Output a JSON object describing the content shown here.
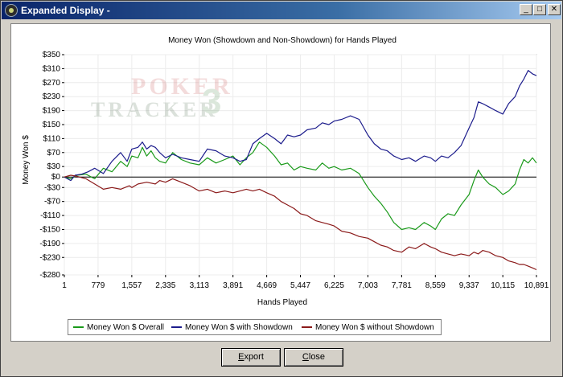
{
  "window": {
    "title": "Expanded Display -",
    "min_glyph": "_",
    "max_glyph": "□",
    "close_glyph": "✕"
  },
  "buttons": {
    "export_first": "E",
    "export_rest": "xport",
    "close_first": "C",
    "close_rest": "lose"
  },
  "watermark": {
    "line1": "POKER",
    "line2": "TRACKER",
    "badge": "3"
  },
  "chart_data": {
    "type": "line",
    "title": "Money Won (Showdown and Non-Showdown) for Hands Played",
    "xlabel": "Hands Played",
    "ylabel": "Money Won $",
    "xlim": [
      1,
      10891
    ],
    "ylim": [
      -280,
      350
    ],
    "x_ticks": [
      1,
      779,
      1557,
      2335,
      3113,
      3891,
      4669,
      5447,
      6225,
      7003,
      7781,
      8559,
      9337,
      10115,
      10891
    ],
    "x_tick_labels": [
      "1",
      "779",
      "1,557",
      "2,335",
      "3,113",
      "3,891",
      "4,669",
      "5,447",
      "6,225",
      "7,003",
      "7,781",
      "8,559",
      "9,337",
      "10,115",
      "10,891"
    ],
    "y_ticks": [
      350,
      310,
      270,
      230,
      190,
      150,
      110,
      70,
      30,
      0,
      -30,
      -70,
      -110,
      -150,
      -190,
      -230,
      -280
    ],
    "y_tick_labels": [
      "$350",
      "$310",
      "$270",
      "$230",
      "$190",
      "$150",
      "$110",
      "$70",
      "$30",
      "$0",
      "-$30",
      "-$70",
      "-$110",
      "-$150",
      "-$190",
      "-$230",
      "-$280"
    ],
    "grid": true,
    "legend_position": "bottom-left",
    "series": [
      {
        "name": "Money Won $ Overall",
        "color": "#1a9a1a",
        "points": [
          [
            1,
            0
          ],
          [
            150,
            -5
          ],
          [
            300,
            5
          ],
          [
            500,
            8
          ],
          [
            700,
            -5
          ],
          [
            900,
            25
          ],
          [
            1100,
            15
          ],
          [
            1300,
            45
          ],
          [
            1450,
            30
          ],
          [
            1557,
            60
          ],
          [
            1700,
            55
          ],
          [
            1800,
            85
          ],
          [
            1900,
            60
          ],
          [
            2000,
            75
          ],
          [
            2100,
            55
          ],
          [
            2200,
            45
          ],
          [
            2335,
            40
          ],
          [
            2500,
            70
          ],
          [
            2700,
            50
          ],
          [
            2900,
            40
          ],
          [
            3113,
            35
          ],
          [
            3300,
            55
          ],
          [
            3500,
            40
          ],
          [
            3700,
            50
          ],
          [
            3891,
            60
          ],
          [
            4050,
            35
          ],
          [
            4200,
            55
          ],
          [
            4350,
            70
          ],
          [
            4500,
            100
          ],
          [
            4669,
            85
          ],
          [
            4850,
            60
          ],
          [
            5000,
            35
          ],
          [
            5150,
            40
          ],
          [
            5300,
            20
          ],
          [
            5447,
            30
          ],
          [
            5600,
            25
          ],
          [
            5800,
            20
          ],
          [
            5950,
            40
          ],
          [
            6100,
            25
          ],
          [
            6225,
            30
          ],
          [
            6400,
            20
          ],
          [
            6600,
            25
          ],
          [
            6800,
            10
          ],
          [
            7003,
            -30
          ],
          [
            7150,
            -55
          ],
          [
            7300,
            -75
          ],
          [
            7450,
            -100
          ],
          [
            7600,
            -130
          ],
          [
            7781,
            -150
          ],
          [
            7950,
            -145
          ],
          [
            8100,
            -150
          ],
          [
            8300,
            -130
          ],
          [
            8450,
            -140
          ],
          [
            8559,
            -150
          ],
          [
            8700,
            -120
          ],
          [
            8850,
            -105
          ],
          [
            9000,
            -110
          ],
          [
            9150,
            -80
          ],
          [
            9337,
            -50
          ],
          [
            9450,
            -10
          ],
          [
            9550,
            20
          ],
          [
            9650,
            0
          ],
          [
            9800,
            -20
          ],
          [
            9950,
            -30
          ],
          [
            10115,
            -50
          ],
          [
            10250,
            -40
          ],
          [
            10400,
            -20
          ],
          [
            10500,
            20
          ],
          [
            10600,
            50
          ],
          [
            10700,
            40
          ],
          [
            10800,
            55
          ],
          [
            10891,
            40
          ]
        ]
      },
      {
        "name": "Money Won $ with Showdown",
        "color": "#1c1c8c",
        "points": [
          [
            1,
            0
          ],
          [
            150,
            -10
          ],
          [
            250,
            5
          ],
          [
            400,
            8
          ],
          [
            550,
            15
          ],
          [
            700,
            25
          ],
          [
            900,
            10
          ],
          [
            1100,
            45
          ],
          [
            1300,
            70
          ],
          [
            1450,
            45
          ],
          [
            1557,
            80
          ],
          [
            1700,
            85
          ],
          [
            1800,
            100
          ],
          [
            1900,
            80
          ],
          [
            2000,
            90
          ],
          [
            2100,
            85
          ],
          [
            2200,
            70
          ],
          [
            2335,
            55
          ],
          [
            2500,
            65
          ],
          [
            2700,
            55
          ],
          [
            2900,
            50
          ],
          [
            3113,
            45
          ],
          [
            3300,
            80
          ],
          [
            3500,
            75
          ],
          [
            3700,
            60
          ],
          [
            3891,
            55
          ],
          [
            4050,
            45
          ],
          [
            4200,
            50
          ],
          [
            4350,
            95
          ],
          [
            4500,
            110
          ],
          [
            4669,
            125
          ],
          [
            4850,
            110
          ],
          [
            5000,
            95
          ],
          [
            5150,
            120
          ],
          [
            5300,
            115
          ],
          [
            5447,
            120
          ],
          [
            5600,
            135
          ],
          [
            5800,
            140
          ],
          [
            5950,
            155
          ],
          [
            6100,
            150
          ],
          [
            6225,
            160
          ],
          [
            6400,
            165
          ],
          [
            6600,
            175
          ],
          [
            6800,
            165
          ],
          [
            7003,
            120
          ],
          [
            7150,
            95
          ],
          [
            7300,
            80
          ],
          [
            7450,
            75
          ],
          [
            7600,
            60
          ],
          [
            7781,
            50
          ],
          [
            7950,
            55
          ],
          [
            8100,
            45
          ],
          [
            8300,
            60
          ],
          [
            8450,
            55
          ],
          [
            8559,
            45
          ],
          [
            8700,
            60
          ],
          [
            8850,
            55
          ],
          [
            9000,
            70
          ],
          [
            9150,
            90
          ],
          [
            9337,
            140
          ],
          [
            9450,
            170
          ],
          [
            9550,
            215
          ],
          [
            9650,
            210
          ],
          [
            9800,
            200
          ],
          [
            9950,
            190
          ],
          [
            10115,
            180
          ],
          [
            10250,
            210
          ],
          [
            10400,
            230
          ],
          [
            10500,
            260
          ],
          [
            10600,
            280
          ],
          [
            10700,
            305
          ],
          [
            10800,
            295
          ],
          [
            10891,
            290
          ]
        ]
      },
      {
        "name": "Money Won $ without Showdown",
        "color": "#8b1a1a",
        "points": [
          [
            1,
            0
          ],
          [
            150,
            5
          ],
          [
            300,
            2
          ],
          [
            500,
            -5
          ],
          [
            700,
            -20
          ],
          [
            900,
            -35
          ],
          [
            1100,
            -30
          ],
          [
            1300,
            -35
          ],
          [
            1500,
            -25
          ],
          [
            1557,
            -30
          ],
          [
            1700,
            -20
          ],
          [
            1900,
            -15
          ],
          [
            2100,
            -20
          ],
          [
            2200,
            -10
          ],
          [
            2335,
            -15
          ],
          [
            2500,
            -5
          ],
          [
            2700,
            -15
          ],
          [
            2900,
            -25
          ],
          [
            3113,
            -40
          ],
          [
            3300,
            -35
          ],
          [
            3500,
            -45
          ],
          [
            3700,
            -40
          ],
          [
            3891,
            -45
          ],
          [
            4050,
            -40
          ],
          [
            4200,
            -35
          ],
          [
            4350,
            -40
          ],
          [
            4500,
            -35
          ],
          [
            4669,
            -45
          ],
          [
            4850,
            -55
          ],
          [
            5000,
            -70
          ],
          [
            5150,
            -80
          ],
          [
            5300,
            -90
          ],
          [
            5447,
            -105
          ],
          [
            5600,
            -110
          ],
          [
            5800,
            -125
          ],
          [
            5950,
            -130
          ],
          [
            6100,
            -135
          ],
          [
            6225,
            -140
          ],
          [
            6400,
            -155
          ],
          [
            6600,
            -160
          ],
          [
            6800,
            -170
          ],
          [
            7003,
            -175
          ],
          [
            7150,
            -185
          ],
          [
            7300,
            -195
          ],
          [
            7450,
            -200
          ],
          [
            7600,
            -210
          ],
          [
            7781,
            -215
          ],
          [
            7950,
            -200
          ],
          [
            8100,
            -205
          ],
          [
            8300,
            -190
          ],
          [
            8450,
            -200
          ],
          [
            8559,
            -205
          ],
          [
            8700,
            -215
          ],
          [
            8850,
            -220
          ],
          [
            9000,
            -225
          ],
          [
            9150,
            -220
          ],
          [
            9337,
            -225
          ],
          [
            9450,
            -215
          ],
          [
            9550,
            -220
          ],
          [
            9650,
            -210
          ],
          [
            9800,
            -215
          ],
          [
            9950,
            -225
          ],
          [
            10115,
            -230
          ],
          [
            10250,
            -240
          ],
          [
            10400,
            -245
          ],
          [
            10500,
            -250
          ],
          [
            10600,
            -250
          ],
          [
            10700,
            -255
          ],
          [
            10800,
            -260
          ],
          [
            10891,
            -265
          ]
        ]
      }
    ]
  }
}
